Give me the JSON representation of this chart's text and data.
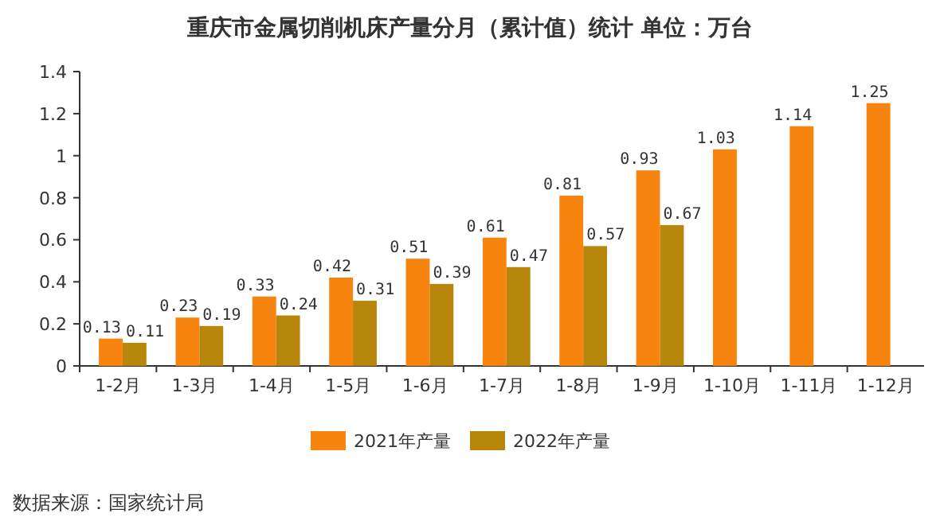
{
  "chart_data": {
    "type": "bar",
    "title": "重庆市金属切削机床产量分月（累计值）统计 单位：万台",
    "categories": [
      "1-2月",
      "1-3月",
      "1-4月",
      "1-5月",
      "1-6月",
      "1-7月",
      "1-8月",
      "1-9月",
      "1-10月",
      "1-11月",
      "1-12月"
    ],
    "series": [
      {
        "name": "2021年产量",
        "color": "#f7840f",
        "values": [
          0.13,
          0.23,
          0.33,
          0.42,
          0.51,
          0.61,
          0.81,
          0.93,
          1.03,
          1.14,
          1.25
        ]
      },
      {
        "name": "2022年产量",
        "color": "#b8860b",
        "values": [
          0.11,
          0.19,
          0.24,
          0.31,
          0.39,
          0.47,
          0.57,
          0.67,
          null,
          null,
          null
        ]
      }
    ],
    "ylim": [
      0,
      1.4
    ],
    "yticks": [
      0,
      0.2,
      0.4,
      0.6,
      0.8,
      1,
      1.2,
      1.4
    ],
    "data_labels": true,
    "legend": "bottom",
    "annotations": [
      "数据来源：国家统计局"
    ]
  }
}
